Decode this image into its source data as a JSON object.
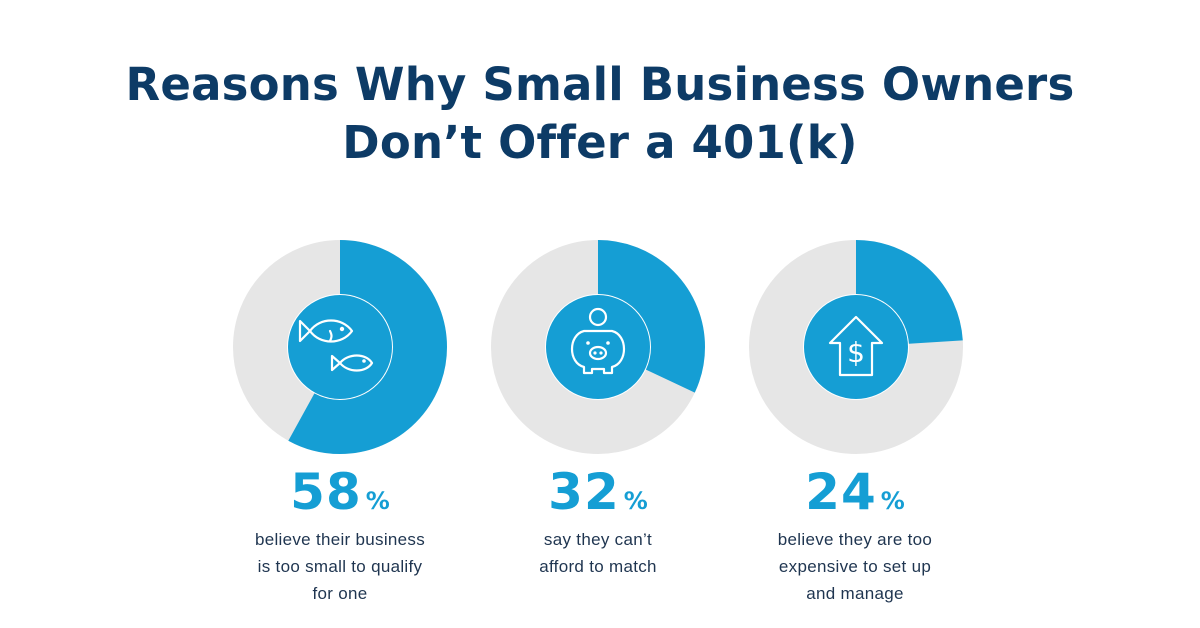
{
  "title": {
    "line1": "Reasons Why Small Business Owners",
    "line2": "Don’t Offer a 401(k)"
  },
  "colors": {
    "title": "#0d3b66",
    "accent": "#159ed4",
    "track": "#e6e6e6",
    "text": "#1f3550"
  },
  "chart_data": {
    "type": "pie",
    "variant": "donut",
    "title": "Reasons Why Small Business Owners Don’t Offer a 401(k)",
    "unit": "%",
    "items": [
      {
        "value": 58,
        "label": "58",
        "unit": "%",
        "description_lines": [
          "believe their business",
          "is too small to qualify",
          "for one"
        ],
        "icon": "fish-icon"
      },
      {
        "value": 32,
        "label": "32",
        "unit": "%",
        "description_lines": [
          "say they can’t",
          "afford to match"
        ],
        "icon": "piggy-bank-icon"
      },
      {
        "value": 24,
        "label": "24",
        "unit": "%",
        "description_lines": [
          "believe they are too",
          "expensive to set up",
          "and manage"
        ],
        "icon": "house-dollar-up-icon"
      }
    ]
  }
}
